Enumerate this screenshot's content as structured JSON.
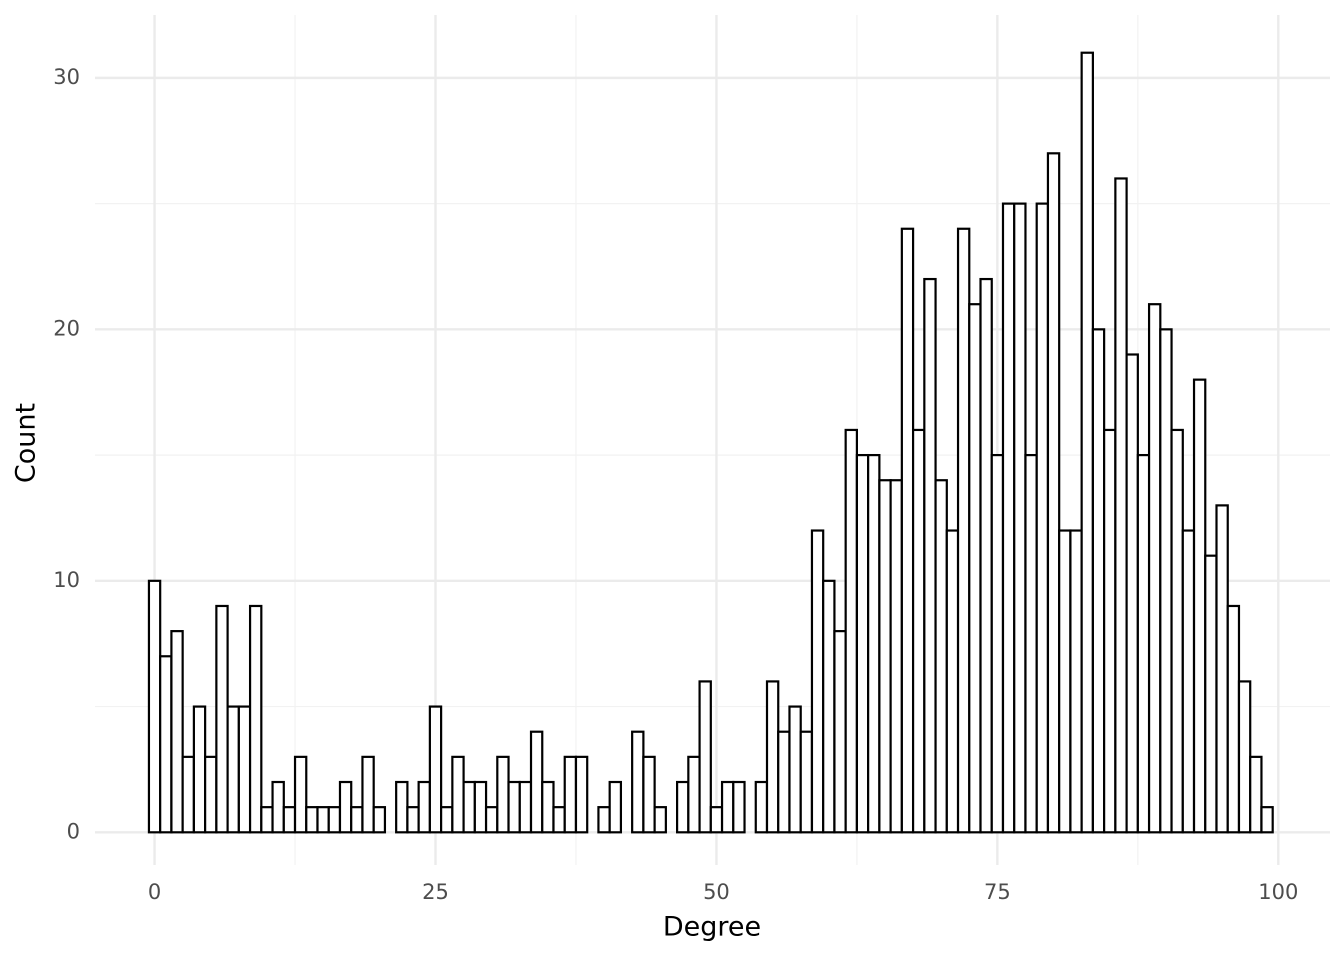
{
  "chart_data": {
    "type": "histogram",
    "x_label": "Degree",
    "y_label": "Count",
    "bins": [
      -0.5,
      0.5,
      1.5,
      2.5,
      3.5,
      4.5,
      5.5,
      6.5,
      7.5,
      8.5,
      9.5,
      10.5,
      11.5,
      12.5,
      13.5,
      14.5,
      15.5,
      16.5,
      17.5,
      18.5,
      19.5,
      20.5,
      21.5,
      22.5,
      23.5,
      24.5,
      25.5,
      26.5,
      27.5,
      28.5,
      29.5,
      30.5,
      31.5,
      32.5,
      33.5,
      34.5,
      35.5,
      36.5,
      37.5,
      38.5,
      39.5,
      40.5,
      41.5,
      42.5,
      43.5,
      44.5,
      45.5,
      46.5,
      47.5,
      48.5,
      49.5,
      50.5,
      51.5,
      52.5,
      53.5,
      54.5,
      55.5,
      56.5,
      57.5,
      58.5,
      59.5,
      60.5,
      61.5,
      62.5,
      63.5,
      64.5,
      65.5,
      66.5,
      67.5,
      68.5,
      69.5,
      70.5,
      71.5,
      72.5,
      73.5,
      74.5,
      75.5,
      76.5,
      77.5,
      78.5,
      79.5,
      80.5,
      81.5,
      82.5,
      83.5,
      84.5,
      85.5,
      86.5,
      87.5,
      88.5,
      89.5,
      90.5,
      91.5,
      92.5,
      93.5,
      94.5,
      95.5,
      96.5,
      97.5,
      98.5,
      99.5
    ],
    "values": [
      10,
      7,
      8,
      3,
      5,
      3,
      9,
      5,
      5,
      9,
      1,
      2,
      1,
      3,
      1,
      1,
      1,
      2,
      1,
      3,
      1,
      0,
      2,
      1,
      2,
      5,
      1,
      3,
      2,
      2,
      1,
      3,
      2,
      2,
      4,
      2,
      1,
      3,
      3,
      0,
      1,
      2,
      0,
      4,
      3,
      1,
      0,
      2,
      3,
      6,
      1,
      2,
      2,
      0,
      2,
      6,
      4,
      5,
      4,
      12,
      10,
      8,
      16,
      15,
      15,
      14,
      14,
      24,
      16,
      22,
      14,
      12,
      24,
      21,
      22,
      15,
      25,
      25,
      15,
      25,
      27,
      12,
      12,
      31,
      20,
      16,
      26,
      19,
      15,
      21,
      20,
      16,
      12,
      18,
      11,
      13,
      9,
      6,
      3,
      1
    ],
    "fill": "#ffffff",
    "edge_color": "#000000",
    "xlim": [
      -5.3,
      104.6
    ],
    "ylim": [
      -1.3,
      32.5
    ],
    "xticks": [
      0,
      25,
      50,
      75,
      100
    ],
    "yticks": [
      0,
      10,
      20,
      30
    ],
    "grid": true
  }
}
